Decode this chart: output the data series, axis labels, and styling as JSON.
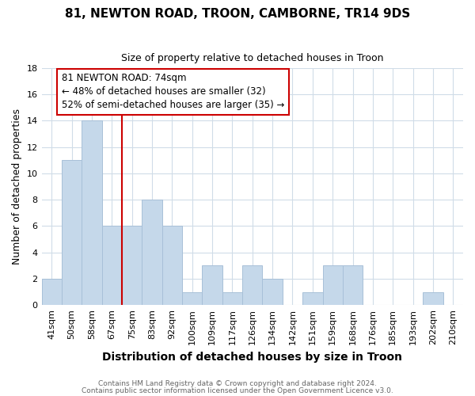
{
  "title1": "81, NEWTON ROAD, TROON, CAMBORNE, TR14 9DS",
  "title2": "Size of property relative to detached houses in Troon",
  "xlabel": "Distribution of detached houses by size in Troon",
  "ylabel": "Number of detached properties",
  "bar_labels": [
    "41sqm",
    "50sqm",
    "58sqm",
    "67sqm",
    "75sqm",
    "83sqm",
    "92sqm",
    "100sqm",
    "109sqm",
    "117sqm",
    "126sqm",
    "134sqm",
    "142sqm",
    "151sqm",
    "159sqm",
    "168sqm",
    "176sqm",
    "185sqm",
    "193sqm",
    "202sqm",
    "210sqm"
  ],
  "bar_heights": [
    2,
    11,
    14,
    6,
    6,
    8,
    6,
    1,
    3,
    1,
    3,
    2,
    0,
    1,
    3,
    3,
    0,
    0,
    0,
    1,
    0
  ],
  "bar_color": "#c5d8ea",
  "bar_edge_color": "#a8c0d8",
  "vline_color": "#cc0000",
  "annotation_text": "81 NEWTON ROAD: 74sqm\n← 48% of detached houses are smaller (32)\n52% of semi-detached houses are larger (35) →",
  "annotation_box_color": "#ffffff",
  "annotation_box_edge": "#cc0000",
  "ylim": [
    0,
    18
  ],
  "yticks": [
    0,
    2,
    4,
    6,
    8,
    10,
    12,
    14,
    16,
    18
  ],
  "footer1": "Contains HM Land Registry data © Crown copyright and database right 2024.",
  "footer2": "Contains public sector information licensed under the Open Government Licence v3.0.",
  "bg_color": "#ffffff",
  "grid_color": "#d0dce8",
  "title1_fontsize": 11,
  "title2_fontsize": 9,
  "xlabel_fontsize": 10,
  "ylabel_fontsize": 9,
  "tick_fontsize": 8,
  "annot_fontsize": 8.5,
  "footer_fontsize": 6.5
}
